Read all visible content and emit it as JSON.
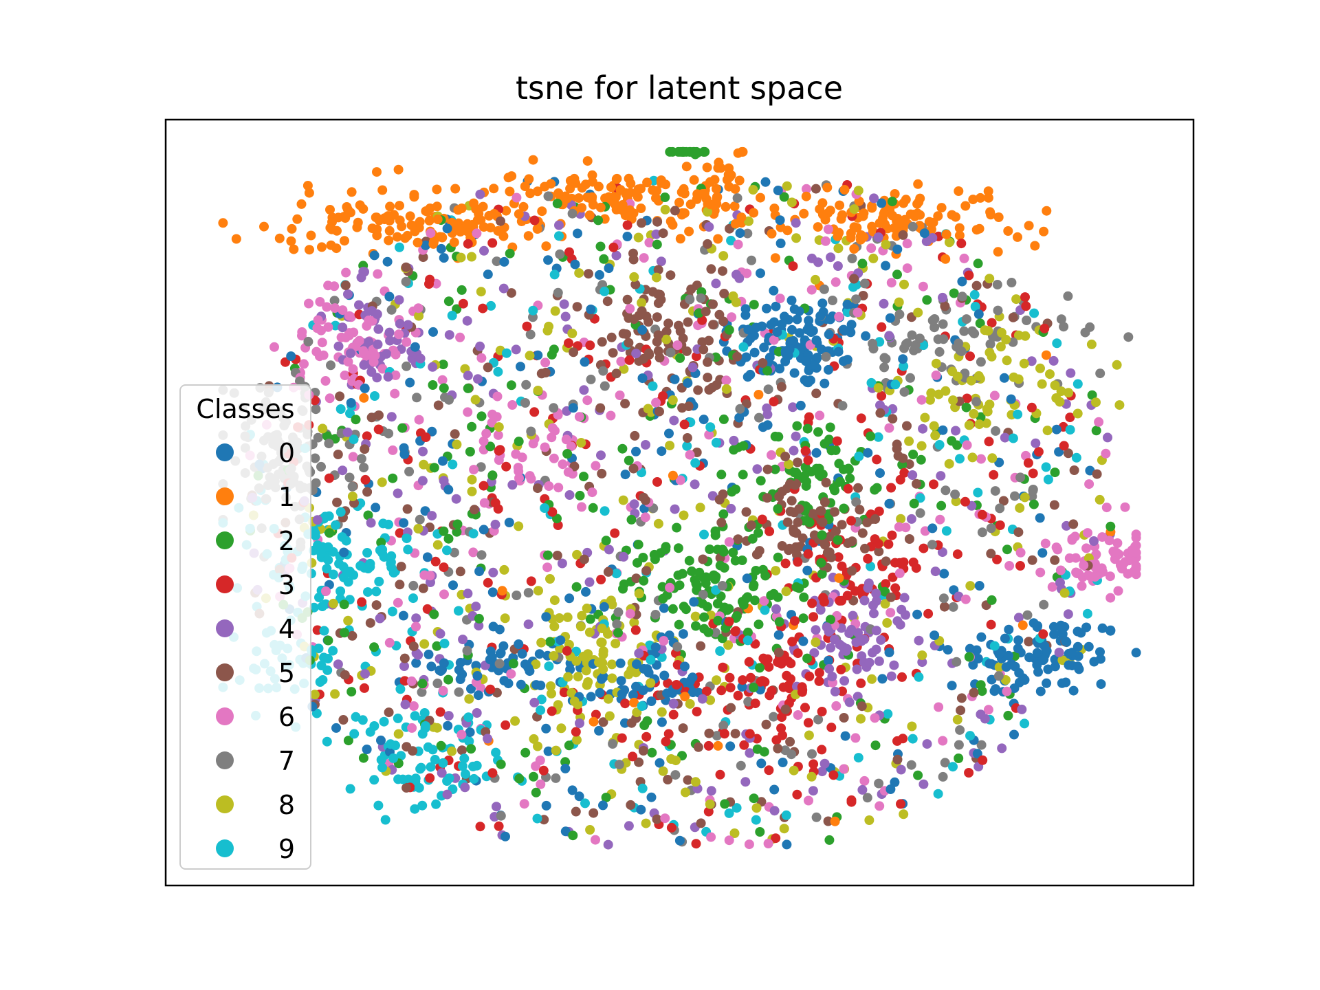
{
  "chart_data": {
    "type": "scatter",
    "title": "tsne for latent space",
    "xlabel": "",
    "ylabel": "",
    "xlim": [
      -105,
      110
    ],
    "ylim": [
      -95,
      95
    ],
    "grid": false,
    "axis_ticks": false,
    "legend": {
      "title": "Classes",
      "placement": "center-left",
      "entries": [
        "0",
        "1",
        "2",
        "3",
        "4",
        "5",
        "6",
        "7",
        "8",
        "9"
      ]
    },
    "colors": [
      "#1f77b4",
      "#ff7f0e",
      "#2ca02c",
      "#d62728",
      "#9467bd",
      "#8c564b",
      "#e377c2",
      "#7f7f7f",
      "#bcbd22",
      "#17becf"
    ],
    "series": [
      {
        "name": "0",
        "clusters": [
          {
            "center": [
              27,
              40
            ],
            "spread": [
              8,
              6
            ],
            "count": 110
          },
          {
            "center": [
              78,
              -38
            ],
            "spread": [
              9,
              5
            ],
            "count": 90
          },
          {
            "center": [
              -5,
              -45
            ],
            "spread": [
              6,
              5
            ],
            "count": 50
          },
          {
            "center": [
              -35,
              -40
            ],
            "spread": [
              7,
              5
            ],
            "count": 50
          }
        ],
        "scatter_count": 220
      },
      {
        "name": "1",
        "clusters": [
          {
            "center": [
              -55,
              70
            ],
            "spread": [
              14,
              4
            ],
            "count": 130
          },
          {
            "center": [
              -10,
              76
            ],
            "spread": [
              12,
              3
            ],
            "count": 110
          },
          {
            "center": [
              45,
              70
            ],
            "spread": [
              14,
              4
            ],
            "count": 120
          },
          {
            "center": [
              10,
              78
            ],
            "spread": [
              4,
              5
            ],
            "count": 30
          }
        ],
        "scatter_count": 20
      },
      {
        "name": "2",
        "clusters": [
          {
            "center": [
              10,
              -20
            ],
            "spread": [
              10,
              8
            ],
            "count": 110
          },
          {
            "center": [
              30,
              5
            ],
            "spread": [
              6,
              8
            ],
            "count": 60
          },
          {
            "center": [
              5,
              90
            ],
            "spread": [
              2,
              2
            ],
            "count": 20
          }
        ],
        "scatter_count": 230
      },
      {
        "name": "3",
        "clusters": [
          {
            "center": [
              20,
              -45
            ],
            "spread": [
              10,
              6
            ],
            "count": 80
          },
          {
            "center": [
              40,
              -15
            ],
            "spread": [
              8,
              8
            ],
            "count": 60
          }
        ],
        "scatter_count": 240
      },
      {
        "name": "4",
        "clusters": [
          {
            "center": [
              40,
              -35
            ],
            "spread": [
              6,
              6
            ],
            "count": 60
          },
          {
            "center": [
              -60,
              40
            ],
            "spread": [
              6,
              6
            ],
            "count": 40
          }
        ],
        "scatter_count": 240
      },
      {
        "name": "5",
        "clusters": [
          {
            "center": [
              0,
              40
            ],
            "spread": [
              8,
              8
            ],
            "count": 90
          },
          {
            "center": [
              30,
              -5
            ],
            "spread": [
              8,
              6
            ],
            "count": 60
          }
        ],
        "scatter_count": 220
      },
      {
        "name": "6",
        "clusters": [
          {
            "center": [
              -65,
              40
            ],
            "spread": [
              7,
              7
            ],
            "count": 70
          },
          {
            "center": [
              90,
              -15
            ],
            "spread": [
              7,
              5
            ],
            "count": 70
          },
          {
            "center": [
              -25,
              15
            ],
            "spread": [
              6,
              6
            ],
            "count": 40
          }
        ],
        "scatter_count": 200
      },
      {
        "name": "7",
        "clusters": [
          {
            "center": [
              -80,
              12
            ],
            "spread": [
              7,
              10
            ],
            "count": 120
          },
          {
            "center": [
              60,
              40
            ],
            "spread": [
              12,
              6
            ],
            "count": 70
          }
        ],
        "scatter_count": 160
      },
      {
        "name": "8",
        "clusters": [
          {
            "center": [
              -15,
              -40
            ],
            "spread": [
              12,
              10
            ],
            "count": 90
          },
          {
            "center": [
              70,
              30
            ],
            "spread": [
              10,
              8
            ],
            "count": 50
          }
        ],
        "scatter_count": 220
      },
      {
        "name": "9",
        "clusters": [
          {
            "center": [
              -70,
              -15
            ],
            "spread": [
              8,
              6
            ],
            "count": 90
          },
          {
            "center": [
              -50,
              -65
            ],
            "spread": [
              8,
              6
            ],
            "count": 60
          },
          {
            "center": [
              -80,
              -40
            ],
            "spread": [
              6,
              6
            ],
            "count": 40
          }
        ],
        "scatter_count": 190
      }
    ]
  }
}
